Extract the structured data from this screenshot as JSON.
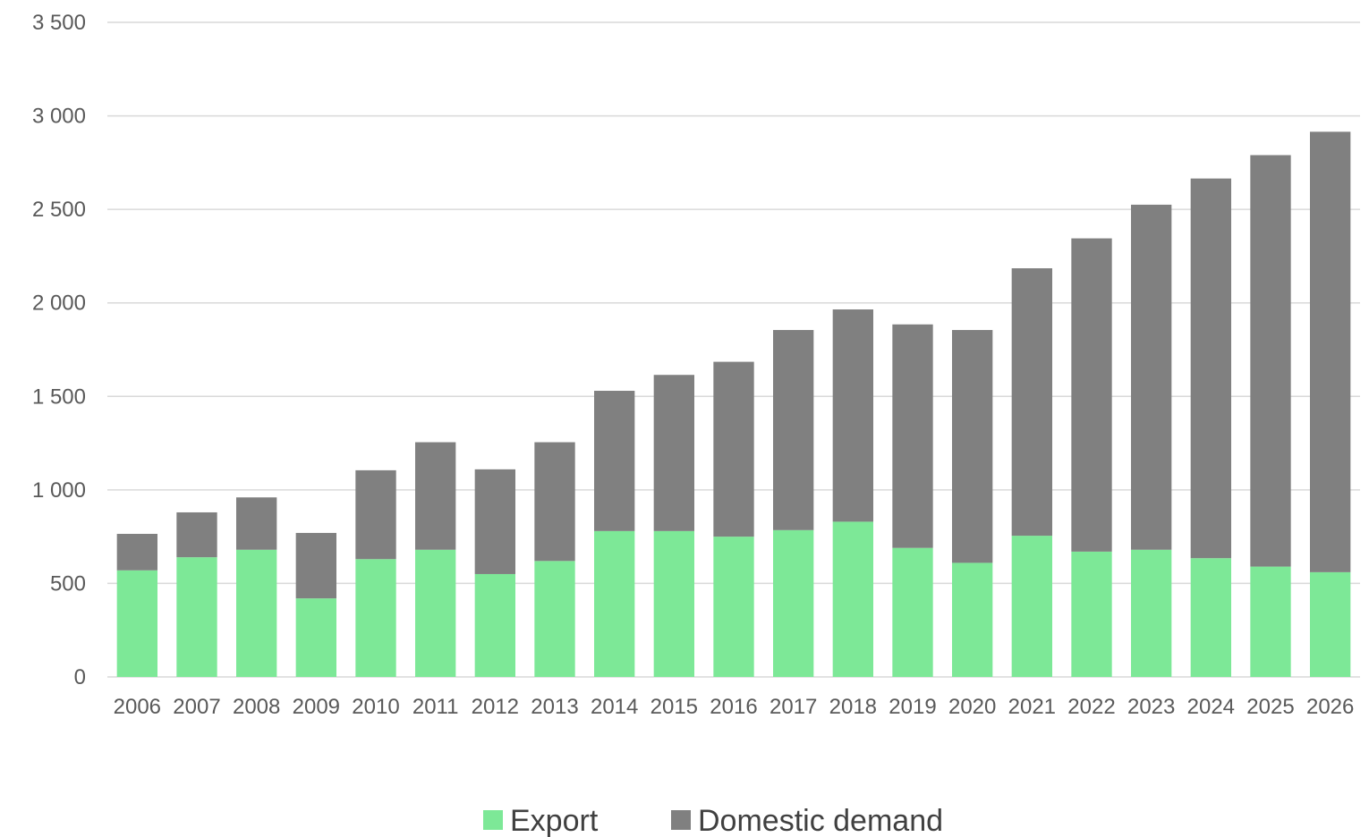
{
  "chart_data": {
    "type": "bar",
    "stacked": true,
    "title": "",
    "xlabel": "",
    "ylabel": "",
    "categories": [
      "2006",
      "2007",
      "2008",
      "2009",
      "2010",
      "2011",
      "2012",
      "2013",
      "2014",
      "2015",
      "2016",
      "2017",
      "2018",
      "2019",
      "2020",
      "2021",
      "2022",
      "2023",
      "2024",
      "2025",
      "2026"
    ],
    "series": [
      {
        "name": "Export",
        "color": "#7de897",
        "values": [
          570,
          640,
          680,
          420,
          630,
          680,
          550,
          620,
          780,
          780,
          750,
          785,
          830,
          690,
          610,
          755,
          670,
          680,
          635,
          590,
          560
        ]
      },
      {
        "name": "Domestic demand",
        "color": "#808080",
        "values": [
          195,
          240,
          280,
          350,
          475,
          575,
          560,
          635,
          750,
          835,
          935,
          1070,
          1135,
          1195,
          1245,
          1430,
          1675,
          1845,
          2030,
          2200,
          2355
        ]
      }
    ],
    "ylim": [
      0,
      3500
    ],
    "yticks": [
      0,
      500,
      1000,
      1500,
      2000,
      2500,
      3000,
      3500
    ],
    "ytick_labels": [
      "0",
      "500",
      "1 000",
      "1 500",
      "2 000",
      "2 500",
      "3 000",
      "3 500"
    ],
    "grid": true,
    "legend_position": "bottom"
  }
}
